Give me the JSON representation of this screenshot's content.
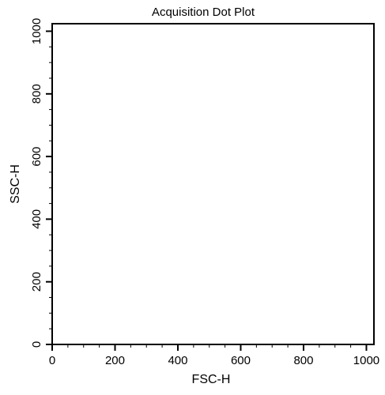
{
  "chart_data": {
    "type": "scatter",
    "title": "Acquisition Dot Plot",
    "xlabel": "FSC-H",
    "ylabel": "SSC-H",
    "xlim": [
      0,
      1024
    ],
    "ylim": [
      0,
      1024
    ],
    "x_ticks": [
      0,
      200,
      400,
      600,
      800,
      1000
    ],
    "y_ticks": [
      0,
      200,
      400,
      600,
      800,
      1000
    ],
    "x_tick_labels": [
      "0",
      "200",
      "400",
      "600",
      "800",
      "1000"
    ],
    "y_tick_labels": [
      "0",
      "200",
      "400",
      "600",
      "800",
      "1000"
    ],
    "minor_tick_step": 50,
    "grid": false,
    "series": [
      {
        "x": [],
        "y": []
      }
    ]
  }
}
